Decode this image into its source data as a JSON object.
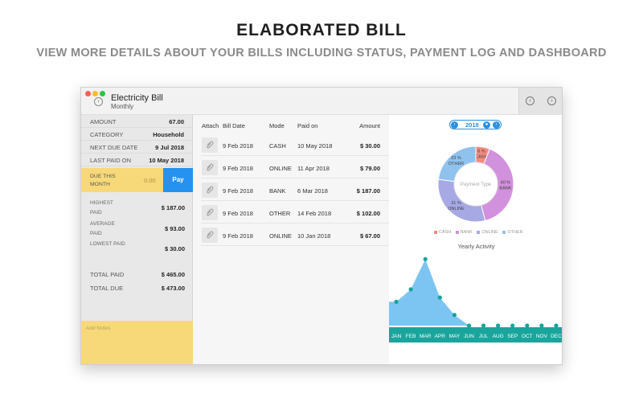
{
  "header": {
    "headline": "ELABORATED BILL",
    "subheadline": "VIEW MORE DETAILS ABOUT YOUR BILLS INCLUDING STATUS, PAYMENT LOG AND DASHBOARD"
  },
  "window": {
    "title": "Electricity Bill",
    "subtitle": "Monthly"
  },
  "summary": {
    "amount_label": "AMOUNT",
    "amount": "67.00",
    "category_label": "CATEGORY",
    "category": "Household",
    "next_due_label": "NEXT DUE DATE",
    "next_due": "9 Jul 2018",
    "last_paid_label": "LAST PAID ON",
    "last_paid": "10 May 2018",
    "due_month_label": "DUE THIS MONTH",
    "due_month_amount": "0.00",
    "pay_label": "Pay",
    "highest_label": "HIGHEST PAID",
    "highest": "$ 187.00",
    "average_label": "AVERAGE PAID",
    "average": "$ 93.00",
    "lowest_label": "LOWEST PAID",
    "lowest": "$ 30.00",
    "total_paid_label": "TOTAL PAID",
    "total_paid": "$ 465.00",
    "total_due_label": "TOTAL DUE",
    "total_due": "$ 473.00",
    "notes_placeholder": "Add Notes"
  },
  "payments": {
    "headers": {
      "attach": "Attach",
      "bill_date": "Bill Date",
      "mode": "Mode",
      "paid_on": "Paid on",
      "amount": "Amount"
    },
    "rows": [
      {
        "bill_date": "9 Feb 2018",
        "mode": "CASH",
        "paid_on": "10 May 2018",
        "amount": "$ 30.00"
      },
      {
        "bill_date": "9 Feb 2018",
        "mode": "ONLINE",
        "paid_on": "11 Apr 2018",
        "amount": "$ 79.00"
      },
      {
        "bill_date": "9 Feb 2018",
        "mode": "BANK",
        "paid_on": "6 Mar 2018",
        "amount": "$ 187.00"
      },
      {
        "bill_date": "9 Feb 2018",
        "mode": "OTHER",
        "paid_on": "14 Feb 2018",
        "amount": "$ 102.00"
      },
      {
        "bill_date": "9 Feb 2018",
        "mode": "ONLINE",
        "paid_on": "10 Jan 2018",
        "amount": "$ 67.00"
      }
    ]
  },
  "dashboard": {
    "year": "2018",
    "donut": {
      "center_label": "Payment Type",
      "slices": [
        {
          "pct": "6 %",
          "name": "CASH",
          "value": 6,
          "color": "#f28b82"
        },
        {
          "pct": "40 %",
          "name": "BANK",
          "value": 40,
          "color": "#d291dc"
        },
        {
          "pct": "31 %",
          "name": "ONLINE",
          "value": 31,
          "color": "#a7a9e4"
        },
        {
          "pct": "23 %",
          "name": "OTHER",
          "value": 23,
          "color": "#8fc3ee"
        }
      ]
    },
    "legend": [
      "CASH",
      "BANK",
      "ONLINE",
      "OTHER"
    ],
    "activity_title": "Yearly Activity",
    "months": [
      "JAN",
      "FEB",
      "MAR",
      "APR",
      "MAY",
      "JUN",
      "JUL",
      "AUG",
      "SEP",
      "OCT",
      "NOV",
      "DEC"
    ],
    "activity_values": [
      67,
      102,
      187,
      79,
      30,
      0,
      0,
      0,
      0,
      0,
      0,
      0
    ],
    "area_color": "#7cc5f2",
    "axis_color": "#1aa59c"
  }
}
